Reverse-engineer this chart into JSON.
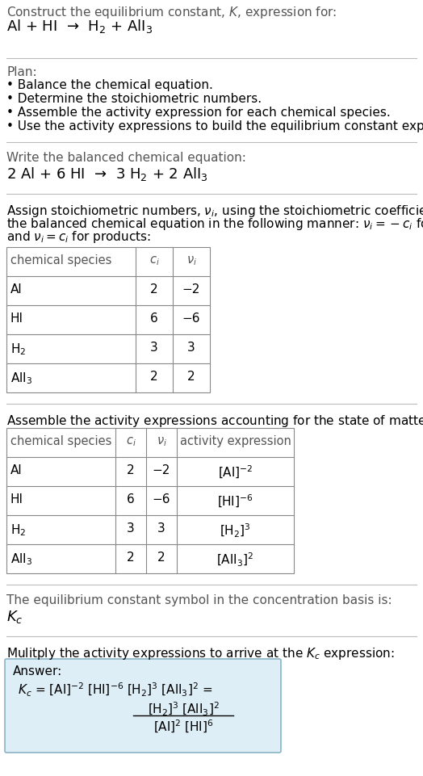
{
  "title_line1": "Construct the equilibrium constant, $K$, expression for:",
  "title_line2": "Al + HI  →  H$_2$ + AlI$_3$",
  "plan_header": "Plan:",
  "plan_bullets": [
    "• Balance the chemical equation.",
    "• Determine the stoichiometric numbers.",
    "• Assemble the activity expression for each chemical species.",
    "• Use the activity expressions to build the equilibrium constant expression."
  ],
  "balanced_header": "Write the balanced chemical equation:",
  "balanced_eq": "2 Al + 6 HI  →  3 H$_2$ + 2 AlI$_3$",
  "stoich_lines": [
    "Assign stoichiometric numbers, $\\nu_i$, using the stoichiometric coefficients, $c_i$, from",
    "the balanced chemical equation in the following manner: $\\nu_i = -c_i$ for reactants",
    "and $\\nu_i = c_i$ for products:"
  ],
  "table1_cols": [
    "chemical species",
    "$c_i$",
    "$\\nu_i$"
  ],
  "table1_rows": [
    [
      "Al",
      "2",
      "−2"
    ],
    [
      "HI",
      "6",
      "−6"
    ],
    [
      "H$_2$",
      "3",
      "3"
    ],
    [
      "AlI$_3$",
      "2",
      "2"
    ]
  ],
  "activity_header": "Assemble the activity expressions accounting for the state of matter and $\\nu_i$:",
  "table2_cols": [
    "chemical species",
    "$c_i$",
    "$\\nu_i$",
    "activity expression"
  ],
  "table2_rows": [
    [
      "Al",
      "2",
      "−2",
      "[Al]$^{-2}$"
    ],
    [
      "HI",
      "6",
      "−6",
      "[HI]$^{-6}$"
    ],
    [
      "H$_2$",
      "3",
      "3",
      "[H$_2$]$^3$"
    ],
    [
      "AlI$_3$",
      "2",
      "2",
      "[AlI$_3$]$^2$"
    ]
  ],
  "kc_text": "The equilibrium constant symbol in the concentration basis is:",
  "kc_symbol": "$K_c$",
  "multiply_text": "Mulitply the activity expressions to arrive at the $K_c$ expression:",
  "answer_label": "Answer:",
  "kc_expr": "$K_c$ = [Al]$^{-2}$ [HI]$^{-6}$ [H$_2$]$^3$ [AlI$_3$]$^2$ =",
  "num_text": "[H$_2$]$^3$ [AlI$_3$]$^2$",
  "den_text": "[Al]$^2$ [HI]$^6$",
  "bg_color": "#ffffff",
  "answer_box_bg": "#deeef6",
  "answer_box_border": "#8ab4c8",
  "sep_color": "#bbbbbb",
  "table_color": "#888888",
  "text_color": "#000000",
  "gray_color": "#555555"
}
